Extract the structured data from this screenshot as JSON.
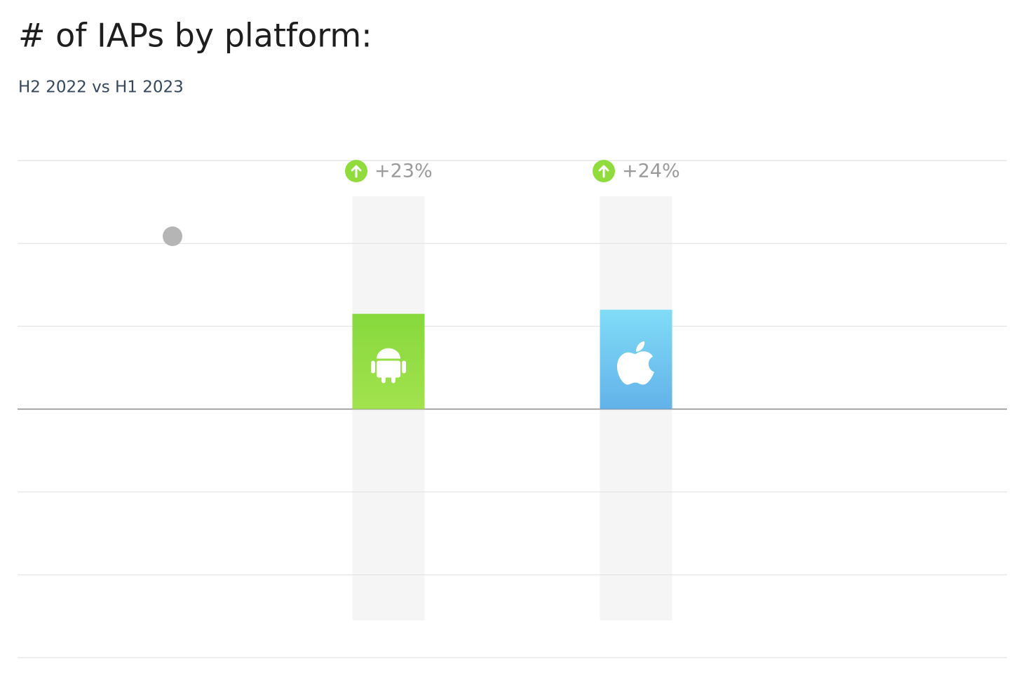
{
  "chart_data": {
    "type": "bar",
    "title": "# of IAPs by platform:",
    "subtitle": "H2 2022 vs H1 2023",
    "categories": [
      null,
      null
    ],
    "values": [
      23,
      24
    ],
    "value_labels": [
      "+23%",
      "+24%"
    ],
    "colors": [
      "#8fd944",
      "#6cc4f0"
    ],
    "ylim": [
      -60,
      60
    ],
    "yticks": [
      -60,
      -40,
      -20,
      0,
      20,
      40,
      60
    ],
    "grid": true
  }
}
